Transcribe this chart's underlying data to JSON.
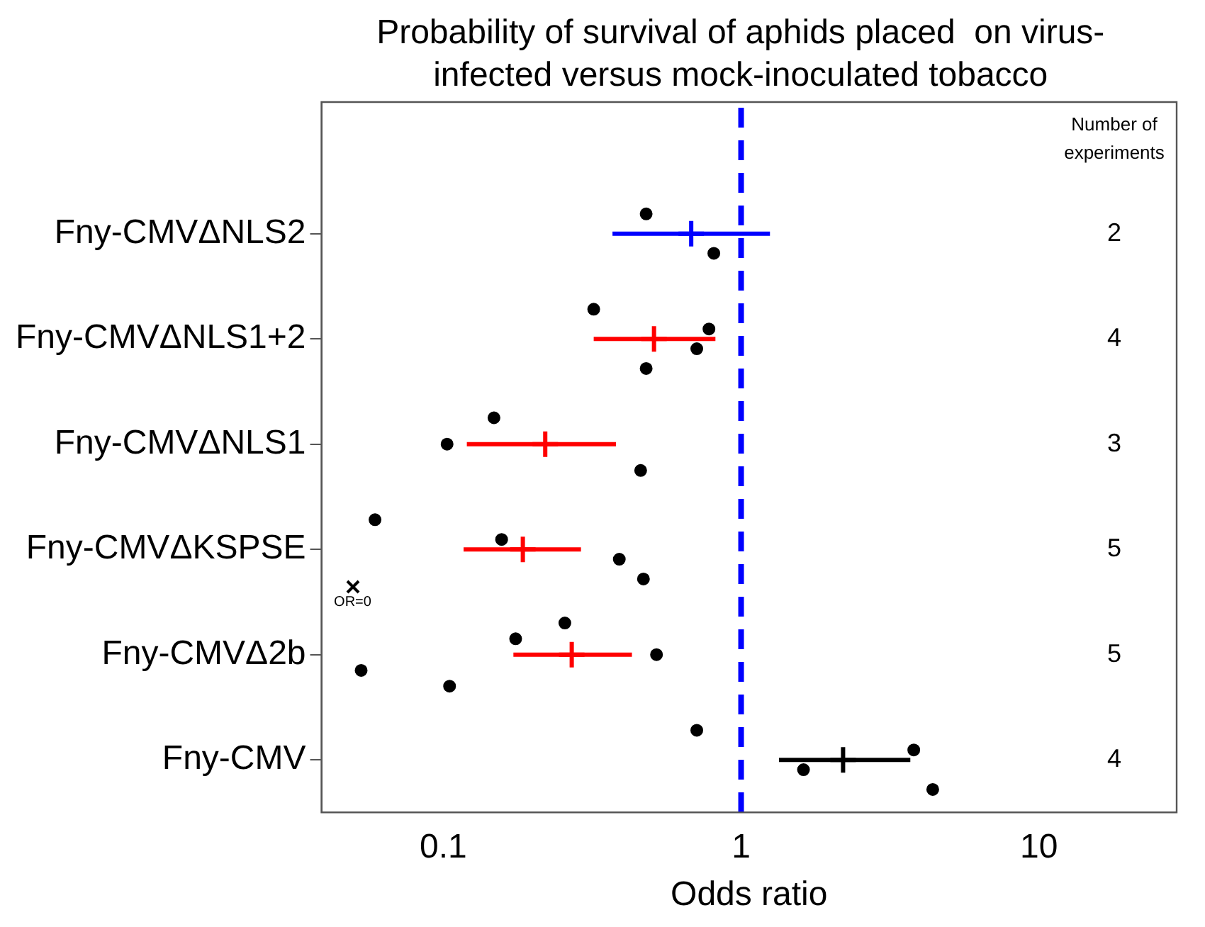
{
  "chart_data": {
    "type": "scatter",
    "orientation": "horizontal",
    "title": "Probability of survival of aphids placed  on virus-\ninfected versus mock-inoculated tobacco",
    "xlabel": "Odds ratio",
    "categories": [
      "Fny-CMVΔNLS2",
      "Fny-CMVΔNLS1+2",
      "Fny-CMVΔNLS1",
      "Fny-CMVΔKSPSE",
      "Fny-CMVΔ2b",
      "Fny-CMV"
    ],
    "log": "x",
    "xlim": [
      0.039,
      29
    ],
    "xticks": [
      0.1,
      1,
      10
    ],
    "grid": false,
    "legend": false,
    "series": [
      {
        "marker": "cross",
        "colors": [
          "#0000ff",
          "#ff0000",
          "#ff0000",
          "#ff0000",
          "#ff0000",
          "#000000"
        ],
        "values": [
          0.68,
          0.51,
          0.22,
          0.185,
          0.27,
          2.2
        ],
        "errors": [
          [
            0.37,
            1.25
          ],
          [
            0.32,
            0.82
          ],
          [
            0.12,
            0.38
          ],
          [
            0.117,
            0.29
          ],
          [
            0.172,
            0.43
          ],
          [
            1.34,
            3.7
          ]
        ]
      },
      {
        "marker": "circle",
        "color": "#000000",
        "x": [
          "Fny-CMVΔNLS2",
          "Fny-CMVΔNLS2",
          "Fny-CMVΔNLS1+2",
          "Fny-CMVΔNLS1+2",
          "Fny-CMVΔNLS1+2",
          "Fny-CMVΔNLS1+2",
          "Fny-CMVΔNLS1",
          "Fny-CMVΔNLS1",
          "Fny-CMVΔNLS1",
          "Fny-CMVΔKSPSE",
          "Fny-CMVΔKSPSE",
          "Fny-CMVΔKSPSE",
          "Fny-CMVΔKSPSE",
          "Fny-CMVΔ2b",
          "Fny-CMVΔ2b",
          "Fny-CMVΔ2b",
          "Fny-CMVΔ2b",
          "Fny-CMVΔ2b",
          "Fny-CMV",
          "Fny-CMV",
          "Fny-CMV",
          "Fny-CMV"
        ],
        "values": [
          0.48,
          0.81,
          0.32,
          0.78,
          0.71,
          0.48,
          0.148,
          0.103,
          0.46,
          0.059,
          0.157,
          0.39,
          0.47,
          0.256,
          0.175,
          0.52,
          0.053,
          0.105,
          0.71,
          3.8,
          1.62,
          4.4
        ]
      }
    ],
    "ref_lines": [
      {
        "axis": "x",
        "value": 1,
        "color": "#0000ff",
        "line_style": "dashed"
      }
    ],
    "annotations": [
      "Number of\nexperiments",
      "OR=0",
      "2",
      "4",
      "3",
      "5",
      "5",
      "4"
    ]
  }
}
